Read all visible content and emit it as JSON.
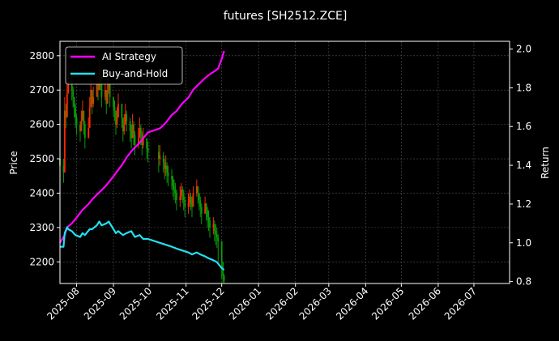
{
  "chart_data": {
    "type": "line",
    "title": "futures [SH2512.ZCE]",
    "xlabel": "",
    "ylabel_left": "Price",
    "ylabel_right": "Return",
    "x_ticks": [
      "2025-08",
      "2025-09",
      "2025-10",
      "2025-11",
      "2025-12",
      "2026-01",
      "2026-02",
      "2026-03",
      "2026-04",
      "2026-05",
      "2026-06",
      "2026-07"
    ],
    "x_range": [
      "2025-07-18",
      "2026-07-31"
    ],
    "y_left_ticks": [
      2200,
      2300,
      2400,
      2500,
      2600,
      2700,
      2800
    ],
    "y_left_range": [
      2137,
      2842
    ],
    "y_right_ticks": [
      "0.8",
      "1.0",
      "1.2",
      "1.4",
      "1.6",
      "1.8",
      "2.0"
    ],
    "y_right_range": [
      0.79,
      2.04
    ],
    "grid": true,
    "legend_position": "top-left",
    "background": "#000000",
    "price_candles": {
      "up_color": "#ff2a00",
      "down_color": "#0a9a0a",
      "dates": [
        "2025-07-18",
        "2025-07-21",
        "2025-07-22",
        "2025-07-23",
        "2025-07-24",
        "2025-07-25",
        "2025-07-28",
        "2025-07-29",
        "2025-07-30",
        "2025-07-31",
        "2025-08-01",
        "2025-08-04",
        "2025-08-05",
        "2025-08-06",
        "2025-08-07",
        "2025-08-08",
        "2025-08-11",
        "2025-08-12",
        "2025-08-13",
        "2025-08-14",
        "2025-08-15",
        "2025-08-18",
        "2025-08-19",
        "2025-08-20",
        "2025-08-21",
        "2025-08-22",
        "2025-08-25",
        "2025-08-26",
        "2025-08-27",
        "2025-08-28",
        "2025-08-29",
        "2025-09-01",
        "2025-09-02",
        "2025-09-03",
        "2025-09-04",
        "2025-09-05",
        "2025-09-08",
        "2025-09-09",
        "2025-09-10",
        "2025-09-11",
        "2025-09-12",
        "2025-09-15",
        "2025-09-16",
        "2025-09-17",
        "2025-09-18",
        "2025-09-19",
        "2025-09-22",
        "2025-09-23",
        "2025-09-24",
        "2025-09-25",
        "2025-09-26",
        "2025-09-29",
        "2025-09-30",
        "2025-10-09",
        "2025-10-10",
        "2025-10-13",
        "2025-10-14",
        "2025-10-15",
        "2025-10-16",
        "2025-10-17",
        "2025-10-20",
        "2025-10-21",
        "2025-10-22",
        "2025-10-23",
        "2025-10-24",
        "2025-10-27",
        "2025-10-28",
        "2025-10-29",
        "2025-10-30",
        "2025-10-31",
        "2025-11-03",
        "2025-11-04",
        "2025-11-05",
        "2025-11-06",
        "2025-11-07",
        "2025-11-10",
        "2025-11-11",
        "2025-11-12",
        "2025-11-13",
        "2025-11-14",
        "2025-11-17",
        "2025-11-18",
        "2025-11-19",
        "2025-11-20",
        "2025-11-21",
        "2025-11-24",
        "2025-11-25",
        "2025-11-26",
        "2025-11-27",
        "2025-11-28",
        "2025-12-01",
        "2025-12-02",
        "2025-12-03"
      ],
      "close": [
        2480,
        2460,
        2640,
        2620,
        2690,
        2760,
        2700,
        2680,
        2650,
        2620,
        2600,
        2580,
        2610,
        2640,
        2600,
        2560,
        2590,
        2650,
        2700,
        2660,
        2680,
        2720,
        2700,
        2760,
        2740,
        2680,
        2700,
        2660,
        2700,
        2720,
        2680,
        2650,
        2640,
        2600,
        2620,
        2660,
        2620,
        2580,
        2600,
        2630,
        2610,
        2580,
        2560,
        2600,
        2570,
        2540,
        2560,
        2590,
        2570,
        2540,
        2560,
        2530,
        2520,
        2500,
        2510,
        2490,
        2470,
        2480,
        2460,
        2450,
        2440,
        2420,
        2410,
        2400,
        2380,
        2390,
        2410,
        2400,
        2380,
        2360,
        2370,
        2390,
        2380,
        2360,
        2400,
        2420,
        2400,
        2380,
        2360,
        2340,
        2370,
        2350,
        2330,
        2320,
        2300,
        2310,
        2290,
        2280,
        2270,
        2260,
        2200,
        2160,
        2145
      ],
      "high": [
        2510,
        2500,
        2680,
        2660,
        2720,
        2780,
        2740,
        2710,
        2680,
        2660,
        2630,
        2610,
        2640,
        2670,
        2640,
        2610,
        2620,
        2680,
        2730,
        2700,
        2710,
        2750,
        2740,
        2790,
        2770,
        2720,
        2730,
        2700,
        2730,
        2750,
        2710,
        2680,
        2670,
        2640,
        2650,
        2690,
        2660,
        2620,
        2630,
        2660,
        2640,
        2620,
        2600,
        2630,
        2610,
        2580,
        2590,
        2620,
        2600,
        2580,
        2590,
        2560,
        2550,
        2540,
        2540,
        2520,
        2500,
        2510,
        2490,
        2480,
        2470,
        2450,
        2440,
        2430,
        2410,
        2420,
        2430,
        2420,
        2410,
        2390,
        2400,
        2410,
        2400,
        2390,
        2420,
        2440,
        2420,
        2400,
        2390,
        2370,
        2390,
        2370,
        2360,
        2350,
        2330,
        2330,
        2320,
        2310,
        2300,
        2280,
        2250,
        2190,
        2165
      ],
      "low": [
        2440,
        2430,
        2580,
        2590,
        2650,
        2700,
        2670,
        2650,
        2620,
        2590,
        2570,
        2550,
        2580,
        2610,
        2570,
        2530,
        2560,
        2620,
        2660,
        2630,
        2650,
        2690,
        2670,
        2720,
        2700,
        2650,
        2670,
        2630,
        2670,
        2690,
        2650,
        2620,
        2610,
        2570,
        2590,
        2630,
        2590,
        2550,
        2570,
        2600,
        2580,
        2550,
        2530,
        2570,
        2540,
        2510,
        2530,
        2560,
        2540,
        2510,
        2530,
        2500,
        2490,
        2460,
        2480,
        2460,
        2440,
        2450,
        2430,
        2420,
        2410,
        2390,
        2380,
        2370,
        2350,
        2360,
        2380,
        2370,
        2350,
        2330,
        2340,
        2360,
        2350,
        2330,
        2370,
        2390,
        2370,
        2350,
        2330,
        2310,
        2340,
        2320,
        2300,
        2290,
        2270,
        2280,
        2260,
        2250,
        2240,
        2200,
        2150,
        2140,
        2138
      ]
    },
    "series": [
      {
        "name": "AI Strategy",
        "color": "#ff00ff",
        "axis": "right",
        "dates": [
          "2025-07-18",
          "2025-07-22",
          "2025-07-24",
          "2025-07-28",
          "2025-08-01",
          "2025-08-06",
          "2025-08-11",
          "2025-08-15",
          "2025-08-20",
          "2025-08-25",
          "2025-08-29",
          "2025-09-03",
          "2025-09-08",
          "2025-09-12",
          "2025-09-17",
          "2025-09-22",
          "2025-09-26",
          "2025-09-30",
          "2025-10-10",
          "2025-10-15",
          "2025-10-20",
          "2025-10-24",
          "2025-10-29",
          "2025-11-03",
          "2025-11-07",
          "2025-11-12",
          "2025-11-17",
          "2025-11-21",
          "2025-11-26",
          "2025-11-28",
          "2025-12-01",
          "2025-12-03"
        ],
        "values": [
          1.0,
          1.04,
          1.08,
          1.1,
          1.13,
          1.17,
          1.2,
          1.23,
          1.26,
          1.29,
          1.32,
          1.36,
          1.4,
          1.44,
          1.48,
          1.51,
          1.54,
          1.57,
          1.59,
          1.62,
          1.66,
          1.68,
          1.72,
          1.75,
          1.79,
          1.82,
          1.85,
          1.87,
          1.89,
          1.9,
          1.95,
          1.99
        ]
      },
      {
        "name": "Buy-and-Hold",
        "color": "#22e0f0",
        "axis": "right",
        "dates": [
          "2025-07-18",
          "2025-07-21",
          "2025-07-22",
          "2025-07-24",
          "2025-07-25",
          "2025-07-28",
          "2025-07-31",
          "2025-08-04",
          "2025-08-06",
          "2025-08-08",
          "2025-08-12",
          "2025-08-14",
          "2025-08-18",
          "2025-08-20",
          "2025-08-22",
          "2025-08-26",
          "2025-08-28",
          "2025-09-01",
          "2025-09-03",
          "2025-09-05",
          "2025-09-09",
          "2025-09-12",
          "2025-09-16",
          "2025-09-19",
          "2025-09-23",
          "2025-09-26",
          "2025-09-30",
          "2025-10-10",
          "2025-10-15",
          "2025-10-20",
          "2025-10-24",
          "2025-10-29",
          "2025-11-03",
          "2025-11-06",
          "2025-11-10",
          "2025-11-13",
          "2025-11-17",
          "2025-11-20",
          "2025-11-24",
          "2025-11-27",
          "2025-12-01",
          "2025-12-03"
        ],
        "values": [
          0.98,
          0.98,
          1.05,
          1.08,
          1.07,
          1.06,
          1.04,
          1.03,
          1.05,
          1.04,
          1.07,
          1.07,
          1.09,
          1.11,
          1.09,
          1.1,
          1.11,
          1.07,
          1.05,
          1.06,
          1.04,
          1.05,
          1.06,
          1.03,
          1.04,
          1.02,
          1.02,
          1.0,
          0.99,
          0.98,
          0.97,
          0.96,
          0.95,
          0.94,
          0.95,
          0.94,
          0.93,
          0.92,
          0.91,
          0.9,
          0.87,
          0.86
        ]
      }
    ]
  }
}
